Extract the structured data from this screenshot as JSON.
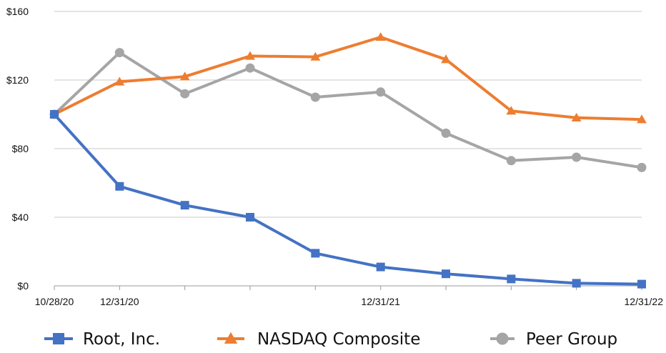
{
  "chart_data": {
    "type": "line",
    "x_tick_labels": [
      "10/28/20",
      "12/31/20",
      "",
      "",
      "",
      "12/31/21",
      "",
      "",
      "",
      "12/31/22"
    ],
    "yticks": [
      0,
      40,
      80,
      120,
      160
    ],
    "ytick_labels": [
      "$0",
      "$40",
      "$80",
      "$120",
      "$160"
    ],
    "ylim": [
      0,
      160
    ],
    "grid": true,
    "legend_position": "bottom",
    "series": [
      {
        "name": "Root, Inc.",
        "color": "#4472C4",
        "marker": "square",
        "values": [
          100,
          58,
          47,
          40,
          19,
          11,
          7,
          4,
          1.5,
          1
        ]
      },
      {
        "name": "NASDAQ Composite",
        "color": "#ED7D31",
        "marker": "triangle",
        "values": [
          100,
          119,
          122,
          134,
          133.5,
          145,
          132,
          102,
          98,
          97
        ]
      },
      {
        "name": "Peer Group",
        "color": "#A5A5A5",
        "marker": "circle",
        "values": [
          100,
          136,
          112,
          127,
          110,
          113,
          89,
          73,
          75,
          69
        ]
      }
    ]
  }
}
